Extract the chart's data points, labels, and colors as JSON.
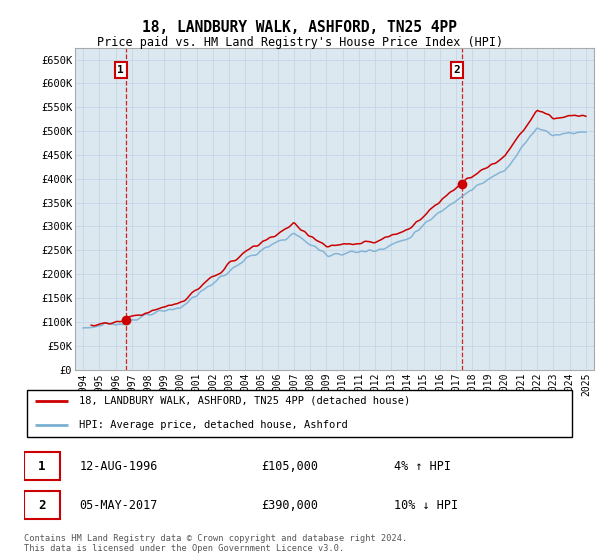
{
  "title": "18, LANDBURY WALK, ASHFORD, TN25 4PP",
  "subtitle": "Price paid vs. HM Land Registry's House Price Index (HPI)",
  "ylabel_ticks": [
    "£0",
    "£50K",
    "£100K",
    "£150K",
    "£200K",
    "£250K",
    "£300K",
    "£350K",
    "£400K",
    "£450K",
    "£500K",
    "£550K",
    "£600K",
    "£650K"
  ],
  "ytick_values": [
    0,
    50000,
    100000,
    150000,
    200000,
    250000,
    300000,
    350000,
    400000,
    450000,
    500000,
    550000,
    600000,
    650000
  ],
  "ylim": [
    0,
    675000
  ],
  "xlim_start": 1993.5,
  "xlim_end": 2025.5,
  "xtick_years": [
    1994,
    1995,
    1996,
    1997,
    1998,
    1999,
    2000,
    2001,
    2002,
    2003,
    2004,
    2005,
    2006,
    2007,
    2008,
    2009,
    2010,
    2011,
    2012,
    2013,
    2014,
    2015,
    2016,
    2017,
    2018,
    2019,
    2020,
    2021,
    2022,
    2023,
    2024,
    2025
  ],
  "hpi_color": "#7bafd4",
  "price_color": "#cc0000",
  "vline_color": "#cc0000",
  "grid_color": "#c8d8e8",
  "bg_color": "#ffffff",
  "plot_bg_color": "#dce8f0",
  "purchase1_year": 1996.62,
  "purchase1_price": 105000,
  "purchase1_label": "1",
  "purchase1_date": "12-AUG-1996",
  "purchase1_amount": "£105,000",
  "purchase1_hpi": "4% ↑ HPI",
  "purchase2_year": 2017.34,
  "purchase2_price": 390000,
  "purchase2_label": "2",
  "purchase2_date": "05-MAY-2017",
  "purchase2_amount": "£390,000",
  "purchase2_hpi": "10% ↓ HPI",
  "legend_line1": "18, LANDBURY WALK, ASHFORD, TN25 4PP (detached house)",
  "legend_line2": "HPI: Average price, detached house, Ashford",
  "footer": "Contains HM Land Registry data © Crown copyright and database right 2024.\nThis data is licensed under the Open Government Licence v3.0."
}
